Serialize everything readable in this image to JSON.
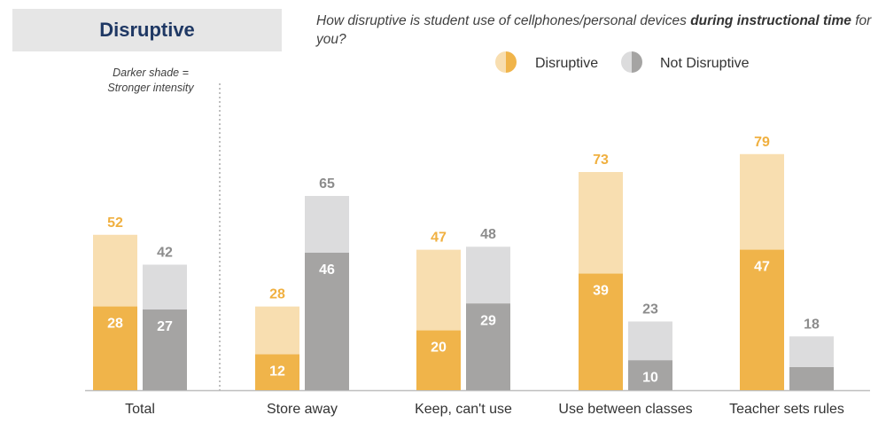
{
  "header": {
    "title": "Disruptive",
    "question_part1": "How disruptive is student use of cellphones/personal devices ",
    "question_bold": "during instructional time",
    "question_part2": " for you?"
  },
  "note": {
    "line1": "Darker shade =",
    "line2": "Stronger intensity"
  },
  "colors": {
    "disruptive_light": "#f8deb0",
    "disruptive_dark": "#f0b44a",
    "disruptive_label": "#f0b040",
    "not_light": "#dcdcdd",
    "not_dark": "#a5a4a3",
    "not_label": "#8c8c8c",
    "axis": "#bfbfbf",
    "divider": "#7f7f7f"
  },
  "chart_data": {
    "type": "bar",
    "stacked_overlay": true,
    "categories": [
      "Total",
      "Store away",
      "Keep, can't use",
      "Use between classes",
      "Teacher sets rules"
    ],
    "series": [
      {
        "name": "Disruptive",
        "values": [
          52,
          28,
          47,
          73,
          79
        ],
        "strong_values": [
          28,
          12,
          20,
          39,
          47
        ]
      },
      {
        "name": "Not Disruptive",
        "values": [
          42,
          65,
          48,
          23,
          18
        ],
        "strong_values": [
          27,
          46,
          29,
          10,
          null
        ]
      }
    ],
    "legend": [
      "Disruptive",
      "Not Disruptive"
    ],
    "legend_position": "top-right",
    "ylim": [
      0,
      100
    ],
    "grid": false,
    "xlabel": "",
    "ylabel": ""
  }
}
